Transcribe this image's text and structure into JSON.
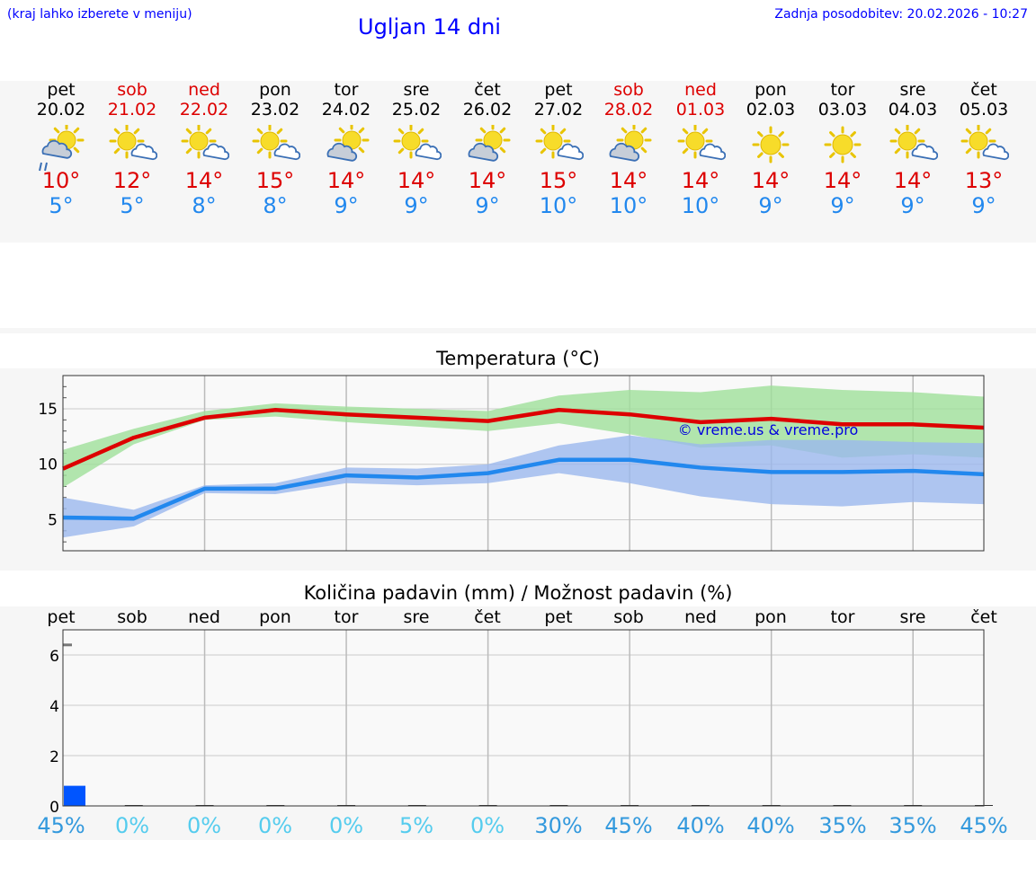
{
  "header": {
    "hint": "(kraj lahko izberete v meniju)",
    "title": "Ugljan 14 dni",
    "updated": "Zadnja posodobitev: 20.02.2026 - 10:27"
  },
  "days": [
    {
      "name": "pet",
      "date": "20.02",
      "weekend": false,
      "icon": "partly-cloudy-drizzle-icon",
      "max": "10°",
      "min": "5°"
    },
    {
      "name": "sob",
      "date": "21.02",
      "weekend": true,
      "icon": "sun-cloud-icon",
      "max": "12°",
      "min": "5°"
    },
    {
      "name": "ned",
      "date": "22.02",
      "weekend": true,
      "icon": "sun-cloud-icon",
      "max": "14°",
      "min": "8°"
    },
    {
      "name": "pon",
      "date": "23.02",
      "weekend": false,
      "icon": "sun-cloud-icon",
      "max": "15°",
      "min": "8°"
    },
    {
      "name": "tor",
      "date": "24.02",
      "weekend": false,
      "icon": "cloud-sun-icon",
      "max": "14°",
      "min": "9°"
    },
    {
      "name": "sre",
      "date": "25.02",
      "weekend": false,
      "icon": "sun-cloud-icon",
      "max": "14°",
      "min": "9°"
    },
    {
      "name": "čet",
      "date": "26.02",
      "weekend": false,
      "icon": "cloud-sun-icon",
      "max": "14°",
      "min": "9°"
    },
    {
      "name": "pet",
      "date": "27.02",
      "weekend": false,
      "icon": "sun-cloud-icon",
      "max": "15°",
      "min": "10°"
    },
    {
      "name": "sob",
      "date": "28.02",
      "weekend": true,
      "icon": "cloud-sun-icon",
      "max": "14°",
      "min": "10°"
    },
    {
      "name": "ned",
      "date": "01.03",
      "weekend": true,
      "icon": "sun-cloud-icon",
      "max": "14°",
      "min": "10°"
    },
    {
      "name": "pon",
      "date": "02.03",
      "weekend": false,
      "icon": "sun-icon",
      "max": "14°",
      "min": "9°"
    },
    {
      "name": "tor",
      "date": "03.03",
      "weekend": false,
      "icon": "sun-icon",
      "max": "14°",
      "min": "9°"
    },
    {
      "name": "sre",
      "date": "04.03",
      "weekend": false,
      "icon": "sun-cloud-icon",
      "max": "14°",
      "min": "9°"
    },
    {
      "name": "čet",
      "date": "05.03",
      "weekend": false,
      "icon": "sun-cloud-icon",
      "max": "13°",
      "min": "9°"
    }
  ],
  "colors": {
    "max": "#dd0000",
    "min": "#2288ee",
    "weekend": "#dd0000",
    "max_band": "#9fe09a",
    "min_band": "#9bb8ee",
    "precip_bar": "#0055ff",
    "prob_high": "#3399dd",
    "prob_low": "#55ccee"
  },
  "chart_data": [
    {
      "type": "line",
      "title": "Temperatura (°C)",
      "xlabel": "",
      "ylabel": "",
      "categories": [
        "20.02",
        "21.02",
        "22.02",
        "23.02",
        "24.02",
        "25.02",
        "26.02",
        "27.02",
        "28.02",
        "01.03",
        "02.03",
        "03.03",
        "04.03",
        "05.03"
      ],
      "ylim": [
        2.2,
        18
      ],
      "yticks": [
        5,
        10,
        15
      ],
      "grid": true,
      "watermark": "© vreme.us & vreme.pro",
      "series": [
        {
          "values": [
            9.6,
            12.4,
            14.2,
            14.9,
            14.5,
            14.2,
            13.9,
            14.9,
            14.5,
            13.8,
            14.1,
            13.6,
            13.6,
            13.3
          ]
        },
        {
          "values": [
            5.2,
            5.1,
            7.8,
            7.8,
            9.0,
            8.8,
            9.2,
            10.4,
            10.4,
            9.7,
            9.3,
            9.3,
            9.4,
            9.1
          ]
        },
        {
          "values_low": [
            7.9,
            11.8,
            14.0,
            14.3,
            13.8,
            13.4,
            13.0,
            13.7,
            12.7,
            11.5,
            11.7,
            10.6,
            10.9,
            10.6
          ],
          "values_high": [
            11.3,
            13.2,
            14.8,
            15.5,
            15.2,
            15.0,
            14.8,
            16.2,
            16.7,
            16.5,
            17.1,
            16.7,
            16.5,
            16.1
          ]
        },
        {
          "values_low": [
            3.4,
            4.4,
            7.4,
            7.3,
            8.3,
            8.1,
            8.3,
            9.2,
            8.3,
            7.1,
            6.4,
            6.2,
            6.6,
            6.4
          ],
          "values_high": [
            7.0,
            5.9,
            8.1,
            8.3,
            9.7,
            9.6,
            10.0,
            11.7,
            12.6,
            11.8,
            12.2,
            12.2,
            12.0,
            11.9
          ]
        }
      ]
    },
    {
      "type": "bar",
      "title": "Količina padavin (mm) / Možnost padavin (%)",
      "categories": [
        "pet",
        "sob",
        "ned",
        "pon",
        "tor",
        "sre",
        "čet",
        "pet",
        "sob",
        "ned",
        "pon",
        "tor",
        "sre",
        "čet"
      ],
      "ylim": [
        0,
        7
      ],
      "yticks": [
        0,
        2,
        4,
        6
      ],
      "max_marker": 6.4,
      "series": [
        {
          "values": [
            0.8,
            0,
            0,
            0,
            0,
            0,
            0,
            0,
            0,
            0,
            0,
            0,
            0,
            0
          ]
        }
      ],
      "probability": [
        "45%",
        "0%",
        "0%",
        "0%",
        "0%",
        "5%",
        "0%",
        "30%",
        "45%",
        "40%",
        "40%",
        "35%",
        "35%",
        "45%"
      ]
    }
  ]
}
